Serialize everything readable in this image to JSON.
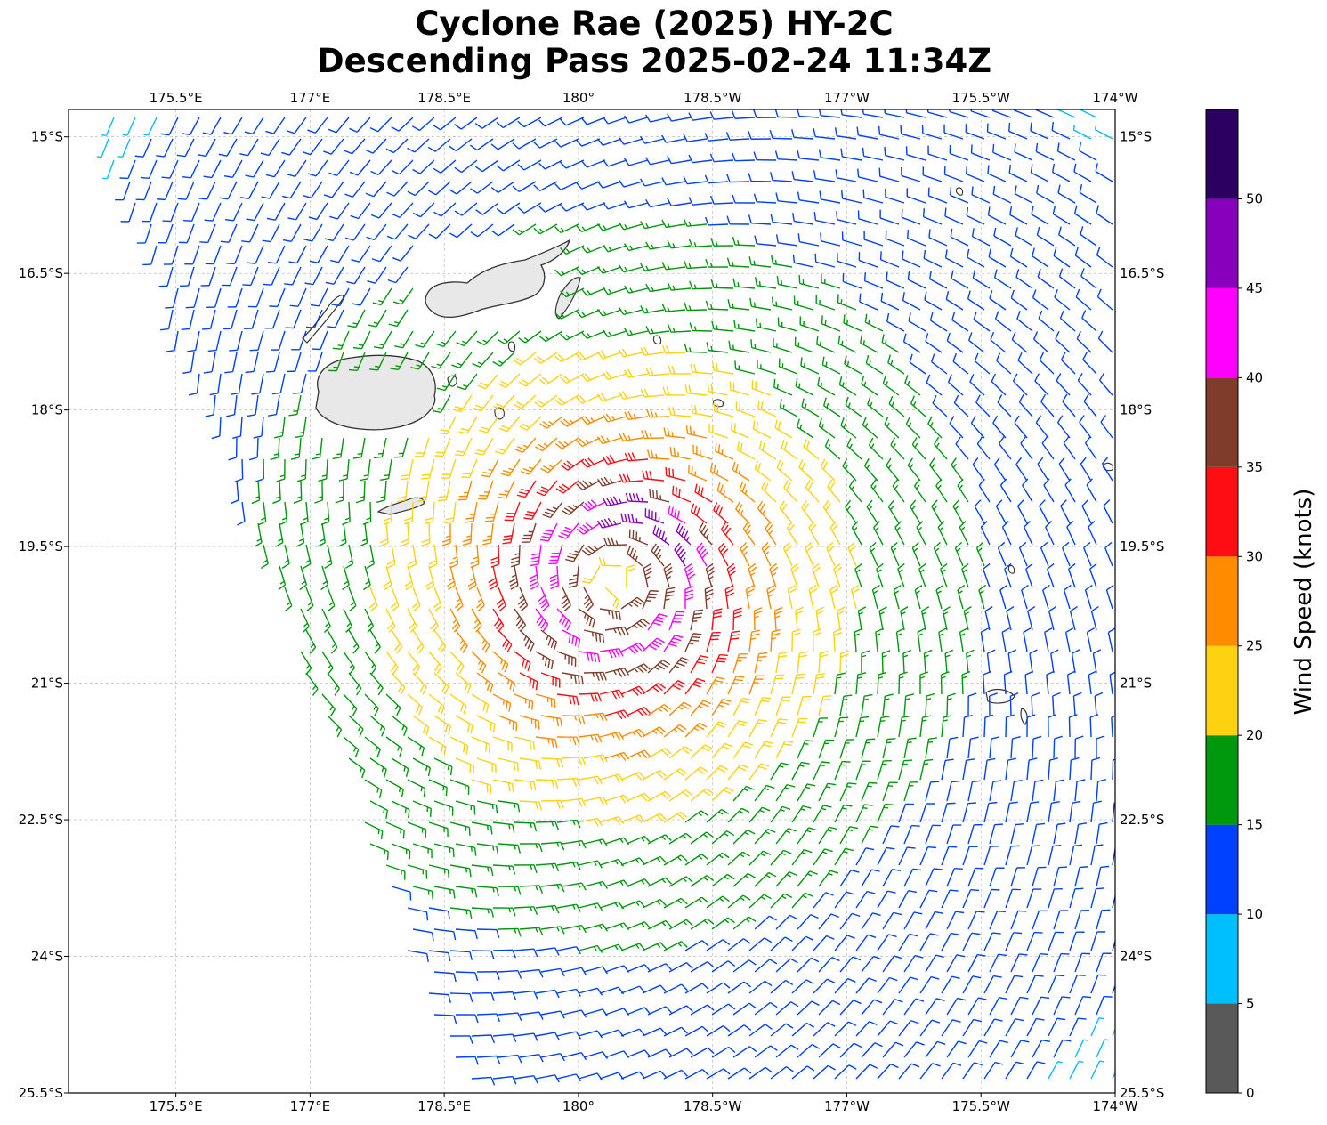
{
  "title": {
    "line1": "Cyclone Rae (2025) HY-2C",
    "line2": "Descending Pass 2025-02-24 11:34Z"
  },
  "map": {
    "lon_range": [
      174.3,
      186.0
    ],
    "lat_range": [
      -25.5,
      -14.7
    ],
    "lon_ticks": [
      {
        "value": 175.5,
        "label": "175.5°E"
      },
      {
        "value": 177.0,
        "label": "177°E"
      },
      {
        "value": 178.5,
        "label": "178.5°E"
      },
      {
        "value": 180.0,
        "label": "180°"
      },
      {
        "value": 181.5,
        "label": "178.5°W"
      },
      {
        "value": 183.0,
        "label": "177°W"
      },
      {
        "value": 184.5,
        "label": "175.5°W"
      },
      {
        "value": 186.0,
        "label": "174°W"
      }
    ],
    "lat_ticks": [
      {
        "value": -15.0,
        "label": "15°S"
      },
      {
        "value": -16.5,
        "label": "16.5°S"
      },
      {
        "value": -18.0,
        "label": "18°S"
      },
      {
        "value": -19.5,
        "label": "19.5°S"
      },
      {
        "value": -21.0,
        "label": "21°S"
      },
      {
        "value": -22.5,
        "label": "22.5°S"
      },
      {
        "value": -24.0,
        "label": "24°S"
      },
      {
        "value": -25.5,
        "label": "25.5°S"
      }
    ],
    "grid": true,
    "storm_center": {
      "lon": 180.4,
      "lat": -19.9
    },
    "land_color": "#f0f0f0",
    "coast_color": "#333333"
  },
  "colorbar": {
    "label": "Wind Speed (knots)",
    "bins": [
      {
        "min": 0,
        "max": 5,
        "color": "#595959"
      },
      {
        "min": 5,
        "max": 10,
        "color": "#00bfff"
      },
      {
        "min": 10,
        "max": 15,
        "color": "#0040ff"
      },
      {
        "min": 15,
        "max": 20,
        "color": "#00990d"
      },
      {
        "min": 20,
        "max": 25,
        "color": "#ffd211"
      },
      {
        "min": 25,
        "max": 30,
        "color": "#ff8c00"
      },
      {
        "min": 30,
        "max": 35,
        "color": "#ff0d15"
      },
      {
        "min": 35,
        "max": 40,
        "color": "#803c2b"
      },
      {
        "min": 40,
        "max": 45,
        "color": "#ff00ff"
      },
      {
        "min": 45,
        "max": 50,
        "color": "#8800bb"
      },
      {
        "min": 50,
        "max": 55,
        "color": "#2a0060"
      }
    ],
    "ticks": [
      "0",
      "5",
      "10",
      "15",
      "20",
      "25",
      "30",
      "35",
      "40",
      "45",
      "50"
    ]
  }
}
